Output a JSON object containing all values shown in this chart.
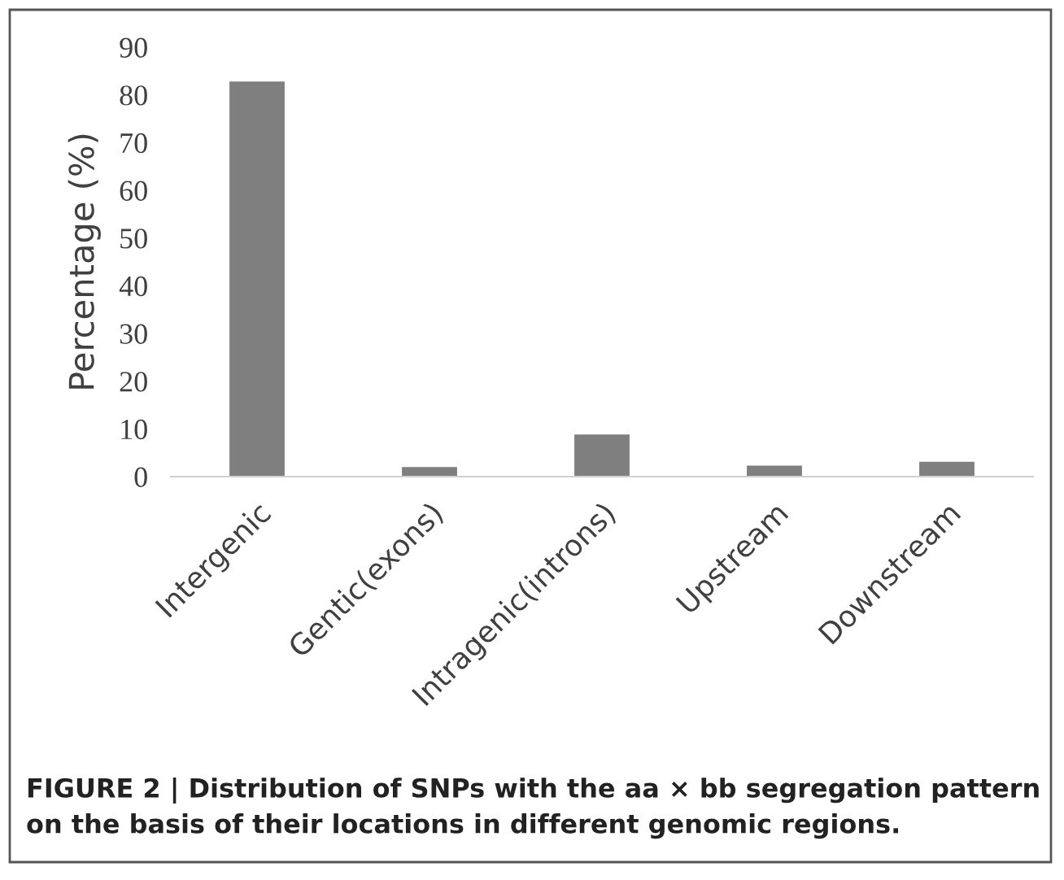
{
  "chart_data": {
    "type": "bar",
    "ylabel": "Percentage (%)",
    "categories": [
      "Intergenic",
      "Gentic(exons)",
      "Intragenic(introns)",
      "Upstream",
      "Downstream"
    ],
    "values": [
      82.8,
      2.0,
      8.8,
      2.3,
      3.1
    ],
    "color": "#7f7f7f",
    "ylim": [
      0,
      90
    ],
    "yticks": [
      0,
      10,
      20,
      30,
      40,
      50,
      60,
      70,
      80,
      90
    ],
    "grid": false,
    "annotations": [
      "FIGURE 2 | Distribution of SNPs with the aa × bb segregation pattern on the basis of their locations in different genomic regions."
    ]
  }
}
